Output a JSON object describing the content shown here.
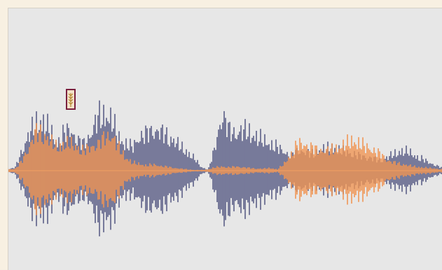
{
  "editor": {
    "background_color": "#f8f0e2",
    "panel_color": "#e7e7e7",
    "baseline_color": "#e89a62",
    "selection_marker_icon": "wheat-icon"
  },
  "waveforms": [
    {
      "name": "",
      "color": "#2c2f66",
      "peaks": [
        0.02,
        0.05,
        0.3,
        0.55,
        0.7,
        0.75,
        0.6,
        0.4,
        0.55,
        0.6,
        0.45,
        0.4,
        0.55,
        0.8,
        0.85,
        0.75,
        0.5,
        0.4,
        0.35,
        0.5,
        0.55,
        0.6,
        0.58,
        0.52,
        0.45,
        0.35,
        0.28,
        0.18,
        0.05,
        0.02,
        0.35,
        0.85,
        0.6,
        0.55,
        0.6,
        0.58,
        0.5,
        0.45,
        0.4,
        0.35,
        0.28,
        0.22,
        0.3,
        0.28,
        0.25,
        0.3,
        0.32,
        0.35,
        0.3,
        0.28,
        0.25,
        0.22,
        0.2,
        0.18,
        0.15,
        0.2,
        0.25,
        0.3,
        0.28,
        0.22,
        0.18,
        0.12,
        0.08,
        0.04
      ]
    },
    {
      "name": "",
      "color": "#ef8c45",
      "peaks": [
        0.02,
        0.03,
        0.15,
        0.35,
        0.58,
        0.55,
        0.45,
        0.35,
        0.4,
        0.4,
        0.35,
        0.3,
        0.35,
        0.4,
        0.5,
        0.52,
        0.35,
        0.2,
        0.12,
        0.1,
        0.08,
        0.09,
        0.07,
        0.06,
        0.04,
        0.03,
        0.02,
        0.01,
        0.01,
        0.02,
        0.05,
        0.06,
        0.05,
        0.06,
        0.05,
        0.04,
        0.03,
        0.03,
        0.04,
        0.02,
        0.1,
        0.25,
        0.4,
        0.38,
        0.35,
        0.3,
        0.3,
        0.32,
        0.35,
        0.4,
        0.45,
        0.4,
        0.35,
        0.3,
        0.25,
        0.15,
        0.12,
        0.1,
        0.08,
        0.06,
        0.05,
        0.04,
        0.03,
        0.02
      ]
    }
  ]
}
